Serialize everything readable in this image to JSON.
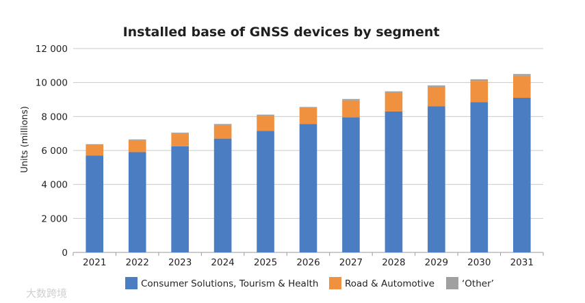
{
  "watermark": "大数跨境",
  "chart_data": {
    "type": "bar",
    "stacked": true,
    "title": "Installed base of GNSS devices by segment",
    "xlabel": "",
    "ylabel": "Units (millions)",
    "ylim": [
      0,
      12000
    ],
    "yticks": [
      0,
      2000,
      4000,
      6000,
      8000,
      10000,
      12000
    ],
    "ytick_labels": [
      "0",
      "2 000",
      "4 000",
      "6 000",
      "8 000",
      "10 000",
      "12 000"
    ],
    "grid": true,
    "legend_position": "bottom",
    "categories": [
      "2021",
      "2022",
      "2023",
      "2024",
      "2025",
      "2026",
      "2027",
      "2028",
      "2029",
      "2030",
      "2031"
    ],
    "series": [
      {
        "name": "Consumer Solutions, Tourism & Health",
        "color": "#4a7dc2",
        "values": [
          5700,
          5900,
          6250,
          6700,
          7150,
          7550,
          7950,
          8300,
          8600,
          8850,
          9100
        ]
      },
      {
        "name": "Road & Automotive",
        "color": "#f0913f",
        "values": [
          620,
          700,
          750,
          800,
          900,
          950,
          1000,
          1100,
          1150,
          1250,
          1300
        ]
      },
      {
        "name": "‘Other’",
        "color": "#a0a0a0",
        "values": [
          50,
          50,
          50,
          60,
          60,
          60,
          80,
          80,
          80,
          90,
          100
        ]
      }
    ]
  }
}
